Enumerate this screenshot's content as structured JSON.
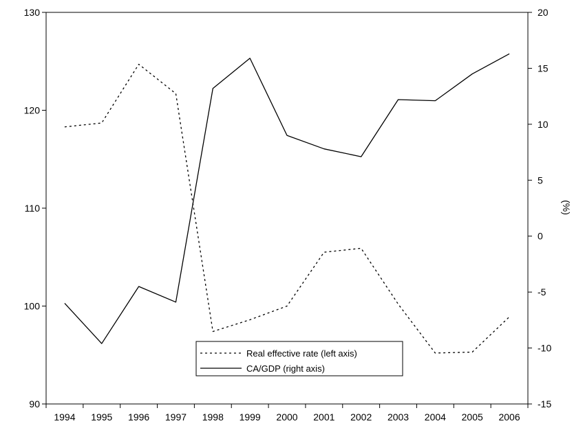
{
  "chart_data": {
    "type": "line",
    "x": [
      "1994",
      "1995",
      "1996",
      "1997",
      "1998",
      "1999",
      "2000",
      "2001",
      "2002",
      "2003",
      "2004",
      "2005",
      "2006"
    ],
    "series": [
      {
        "name": "Real effective rate (left axis)",
        "axis": "left",
        "style": "dotted",
        "values": [
          118.3,
          118.7,
          124.7,
          121.7,
          97.4,
          98.6,
          100.0,
          105.5,
          105.9,
          100.2,
          95.2,
          95.3,
          98.9
        ]
      },
      {
        "name": "CA/GDP (right axis)",
        "axis": "right",
        "style": "solid",
        "values": [
          -6.0,
          -9.6,
          -4.5,
          -5.9,
          13.2,
          15.9,
          9.0,
          7.8,
          7.1,
          12.2,
          12.1,
          14.5,
          16.3
        ]
      }
    ],
    "left_axis": {
      "ylim": [
        90,
        130
      ],
      "ticks": [
        90,
        100,
        110,
        120,
        130
      ]
    },
    "right_axis": {
      "ylim": [
        -15,
        20
      ],
      "ticks": [
        -15,
        -10,
        -5,
        0,
        5,
        10,
        15,
        20
      ],
      "label": "(%)"
    },
    "legend": {
      "placement": "bottom-center"
    },
    "grid": false,
    "colors": {
      "line": "#000000",
      "axis": "#000000",
      "background": "#ffffff"
    }
  }
}
